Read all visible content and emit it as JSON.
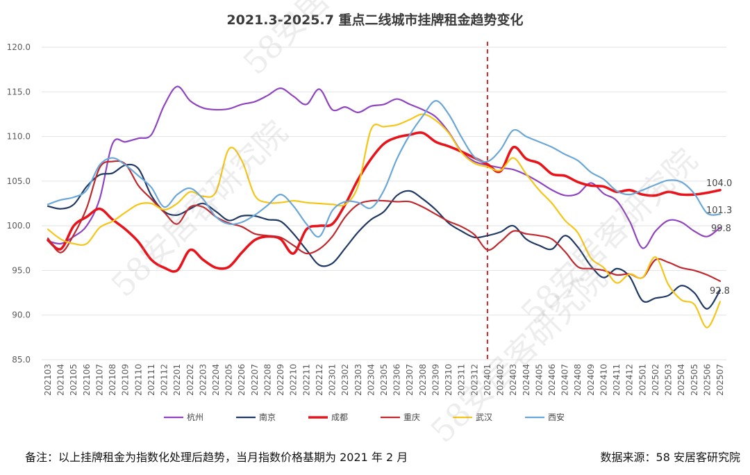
{
  "title": "2021.3-2025.7 重点二线城市挂牌租金趋势变化",
  "footer": {
    "note": "备注：以上挂牌租金为指数化处理后趋势，当月指数价格基期为 2021 年 2 月",
    "source": "数据来源：58 安居客研究院"
  },
  "watermark": "58安居客研究院",
  "chart_data": {
    "type": "line",
    "title": "2021.3-2025.7 重点二线城市挂牌租金趋势变化",
    "xlabel": "",
    "ylabel": "",
    "ylim": [
      85.0,
      120.0
    ],
    "yticks": [
      "85.0",
      "90.0",
      "95.0",
      "100.0",
      "105.0",
      "110.0",
      "115.0",
      "120.0"
    ],
    "grid": "horizontal",
    "legend_position": "bottom",
    "categories": [
      "202103",
      "202104",
      "202105",
      "202106",
      "202107",
      "202108",
      "202109",
      "202110",
      "202111",
      "202112",
      "202201",
      "202202",
      "202203",
      "202204",
      "202205",
      "202206",
      "202207",
      "202208",
      "202209",
      "202210",
      "202211",
      "202212",
      "202301",
      "202302",
      "202303",
      "202304",
      "202305",
      "202306",
      "202307",
      "202308",
      "202309",
      "202310",
      "202311",
      "202312",
      "202401",
      "202402",
      "202403",
      "202404",
      "202405",
      "202406",
      "202407",
      "202408",
      "202409",
      "202410",
      "202411",
      "202412",
      "202501",
      "202502",
      "202503",
      "202504",
      "202505",
      "202506",
      "202507"
    ],
    "reference_line": {
      "category": "202401",
      "color": "#d62728",
      "style": "dashed"
    },
    "series": [
      {
        "name": "杭州",
        "color": "#8e44c0",
        "width": 2.2,
        "end_label": "99.8",
        "values": [
          98.3,
          98.0,
          98.8,
          100.0,
          103.0,
          109.2,
          109.4,
          109.8,
          110.2,
          113.5,
          115.6,
          114.0,
          113.2,
          113.0,
          113.1,
          113.6,
          113.9,
          114.6,
          115.4,
          114.5,
          113.6,
          115.3,
          113.0,
          113.3,
          112.7,
          113.4,
          113.6,
          114.2,
          113.6,
          113.0,
          112.2,
          110.5,
          108.3,
          107.2,
          106.8,
          106.5,
          106.3,
          105.7,
          104.9,
          104.0,
          103.4,
          103.6,
          104.8,
          103.6,
          102.8,
          100.5,
          97.5,
          99.4,
          100.6,
          100.4,
          99.4,
          98.8,
          99.8
        ]
      },
      {
        "name": "南京",
        "color": "#1f3864",
        "width": 2.2,
        "end_label": "92.8",
        "values": [
          102.2,
          101.9,
          102.4,
          104.4,
          105.7,
          105.9,
          106.8,
          106.4,
          103.4,
          101.6,
          101.2,
          101.9,
          102.5,
          101.6,
          100.6,
          101.1,
          101.1,
          100.7,
          100.5,
          99.1,
          97.3,
          95.6,
          95.8,
          97.5,
          99.3,
          100.7,
          101.6,
          103.4,
          103.9,
          103.0,
          101.8,
          100.3,
          99.4,
          98.7,
          98.9,
          99.3,
          100.0,
          98.5,
          97.8,
          97.4,
          98.9,
          97.6,
          95.5,
          94.2,
          95.2,
          94.3,
          91.6,
          91.9,
          92.2,
          93.3,
          92.5,
          90.7,
          92.8
        ]
      },
      {
        "name": "成都",
        "color": "#e8141b",
        "width": 3.6,
        "end_label": "104.0",
        "values": [
          98.4,
          97.4,
          100.0,
          101.0,
          101.9,
          100.7,
          99.6,
          98.2,
          96.2,
          95.3,
          95.0,
          97.3,
          96.2,
          95.3,
          95.4,
          97.0,
          98.4,
          98.8,
          98.5,
          96.9,
          99.6,
          100.0,
          100.2,
          102.4,
          105.2,
          107.5,
          109.2,
          109.9,
          110.2,
          110.4,
          109.4,
          108.9,
          108.3,
          107.6,
          106.9,
          106.1,
          108.8,
          107.5,
          107.0,
          105.8,
          105.6,
          104.9,
          104.5,
          104.4,
          103.8,
          104.0,
          103.5,
          103.4,
          103.8,
          103.5,
          103.5,
          103.7,
          104.0
        ]
      },
      {
        "name": "重庆",
        "color": "#c0282d",
        "width": 2.2,
        "end_label": "",
        "values": [
          98.6,
          97.0,
          99.0,
          102.0,
          106.5,
          107.2,
          106.9,
          104.5,
          103.0,
          101.5,
          100.2,
          102.1,
          102.1,
          101.0,
          100.3,
          99.9,
          99.1,
          98.9,
          98.7,
          97.8,
          96.9,
          97.4,
          98.8,
          101.0,
          102.4,
          102.8,
          102.8,
          102.7,
          102.7,
          102.1,
          101.3,
          100.5,
          99.9,
          99.0,
          97.3,
          98.2,
          99.4,
          99.1,
          98.9,
          98.5,
          97.1,
          95.4,
          95.2,
          95.0,
          94.5,
          94.6,
          94.2,
          96.2,
          95.9,
          95.3,
          95.0,
          94.5,
          93.8
        ]
      },
      {
        "name": "武汉",
        "color": "#f5c518",
        "width": 2.2,
        "end_label": "",
        "values": [
          99.6,
          98.5,
          98.0,
          98.0,
          99.8,
          100.5,
          101.5,
          102.4,
          102.5,
          101.8,
          102.5,
          103.8,
          103.3,
          103.8,
          108.6,
          107.3,
          103.4,
          102.6,
          102.6,
          102.8,
          102.6,
          102.5,
          102.4,
          102.4,
          104.5,
          110.8,
          111.1,
          111.3,
          111.9,
          112.5,
          111.8,
          110.4,
          108.2,
          107.0,
          106.6,
          106.2,
          107.6,
          105.8,
          104.0,
          102.5,
          100.6,
          99.2,
          96.4,
          95.3,
          93.6,
          94.6,
          94.2,
          96.5,
          93.4,
          91.7,
          91.2,
          88.6,
          91.5
        ]
      },
      {
        "name": "西安",
        "color": "#6aa7d8",
        "width": 2.2,
        "end_label": "101.3",
        "values": [
          102.4,
          102.9,
          103.2,
          104.0,
          106.8,
          107.6,
          106.8,
          105.6,
          104.3,
          102.1,
          103.5,
          104.2,
          103.0,
          101.0,
          100.2,
          100.4,
          101.2,
          102.3,
          103.5,
          102.2,
          100.2,
          98.8,
          101.7,
          102.7,
          102.6,
          102.0,
          104.0,
          107.5,
          110.2,
          112.3,
          114.0,
          112.5,
          109.9,
          107.7,
          107.2,
          108.5,
          110.7,
          110.0,
          109.4,
          108.8,
          108.0,
          107.3,
          106.0,
          105.2,
          103.9,
          103.5,
          104.0,
          104.6,
          105.1,
          104.9,
          103.6,
          101.4,
          101.3
        ]
      }
    ]
  }
}
